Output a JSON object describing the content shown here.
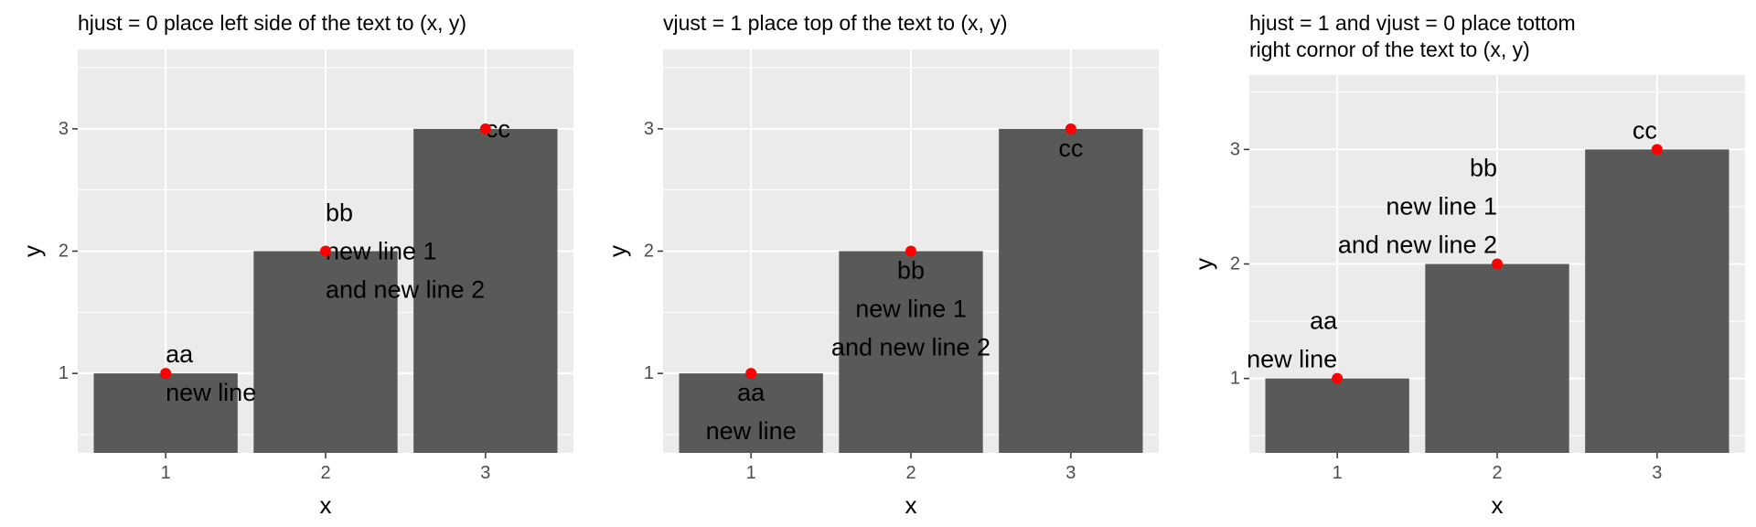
{
  "chart_data": [
    {
      "type": "bar",
      "title": [
        "hjust = 0 place left side of the text to (x, y)"
      ],
      "xlabel": "x",
      "ylabel": "y",
      "categories": [
        1,
        2,
        3
      ],
      "values": [
        1,
        2,
        3
      ],
      "xlim": [
        0.45,
        3.55
      ],
      "ylim": [
        0.35,
        3.65
      ],
      "y_breaks": [
        1,
        2,
        3
      ],
      "bar_color": "#595959",
      "point_color": "#ff0000",
      "panel_color": "#ebebeb",
      "grid": true,
      "hjust": 0,
      "vjust": 0.5,
      "labels": [
        {
          "x": 1,
          "y": 1,
          "lines": [
            "aa",
            "new line"
          ]
        },
        {
          "x": 2,
          "y": 2,
          "lines": [
            "bb",
            "new line 1",
            "and new line 2"
          ]
        },
        {
          "x": 3,
          "y": 3,
          "lines": [
            "cc"
          ]
        }
      ]
    },
    {
      "type": "bar",
      "title": [
        "vjust = 1 place top of the text to (x, y)"
      ],
      "xlabel": "x",
      "ylabel": "y",
      "categories": [
        1,
        2,
        3
      ],
      "values": [
        1,
        2,
        3
      ],
      "xlim": [
        0.45,
        3.55
      ],
      "ylim": [
        0.35,
        3.65
      ],
      "y_breaks": [
        1,
        2,
        3
      ],
      "bar_color": "#595959",
      "point_color": "#ff0000",
      "panel_color": "#ebebeb",
      "grid": true,
      "hjust": 0.5,
      "vjust": 1,
      "labels": [
        {
          "x": 1,
          "y": 1,
          "lines": [
            "aa",
            "new line"
          ]
        },
        {
          "x": 2,
          "y": 2,
          "lines": [
            "bb",
            "new line 1",
            "and new line 2"
          ]
        },
        {
          "x": 3,
          "y": 3,
          "lines": [
            "cc"
          ]
        }
      ]
    },
    {
      "type": "bar",
      "title": [
        "hjust = 1 and vjust = 0 place tottom",
        "right cornor of the text to (x, y)"
      ],
      "xlabel": "x",
      "ylabel": "y",
      "categories": [
        1,
        2,
        3
      ],
      "values": [
        1,
        2,
        3
      ],
      "xlim": [
        0.45,
        3.55
      ],
      "ylim": [
        0.35,
        3.65
      ],
      "y_breaks": [
        1,
        2,
        3
      ],
      "bar_color": "#595959",
      "point_color": "#ff0000",
      "panel_color": "#ebebeb",
      "grid": true,
      "hjust": 1,
      "vjust": 0,
      "labels": [
        {
          "x": 1,
          "y": 1,
          "lines": [
            "aa",
            "new line"
          ]
        },
        {
          "x": 2,
          "y": 2,
          "lines": [
            "bb",
            "new line 1",
            "and new line 2"
          ]
        },
        {
          "x": 3,
          "y": 3,
          "lines": [
            "cc"
          ]
        }
      ]
    }
  ]
}
